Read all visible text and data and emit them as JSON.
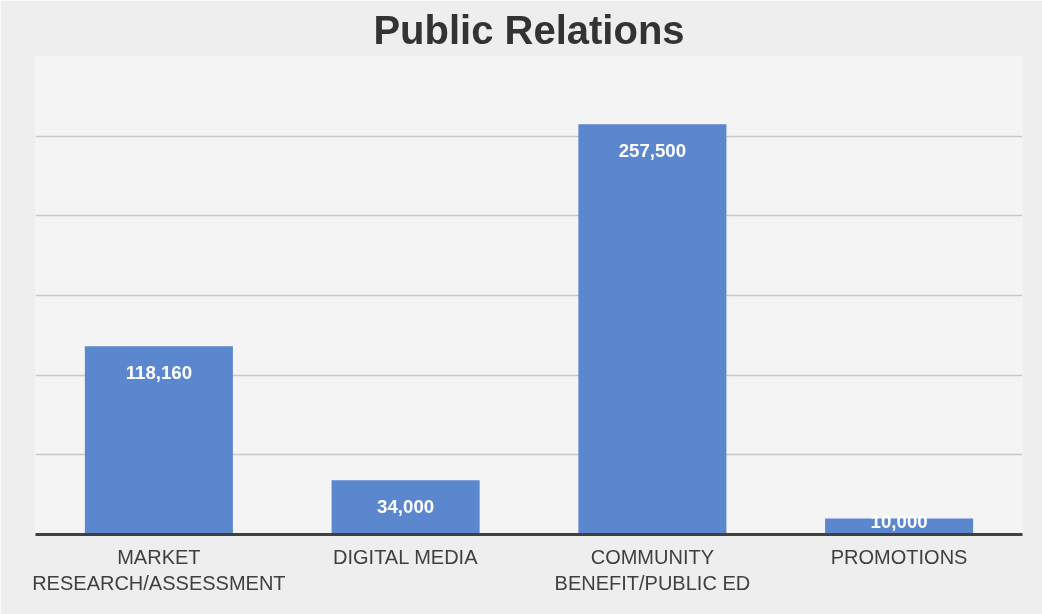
{
  "chart_data": {
    "type": "bar",
    "title": "Public Relations",
    "categories": [
      "MARKET RESEARCH/ASSESSMENT",
      "DIGITAL MEDIA",
      "COMMUNITY BENEFIT/PUBLIC ED",
      "PROMOTIONS"
    ],
    "values": [
      118160,
      34000,
      257500,
      10000
    ],
    "color": "#5b87cf",
    "value_labels": [
      "118,160",
      "34,000",
      "257,500",
      "10,000"
    ],
    "tick_labels": "x",
    "grid": "y"
  }
}
